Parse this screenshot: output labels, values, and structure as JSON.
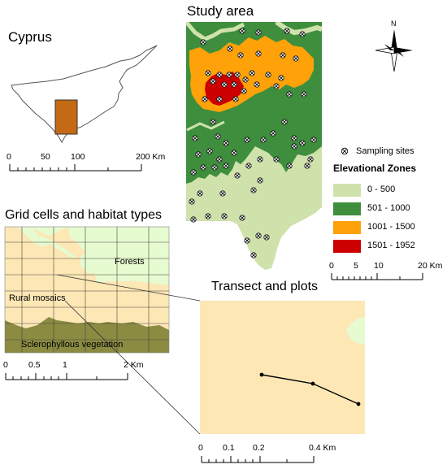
{
  "titles": {
    "cyprus": "Cyprus",
    "study_area": "Study area",
    "grid": "Grid cells and habitat types",
    "transect": "Transect and plots"
  },
  "north_arrow": {
    "label": "N",
    "icon": "north-arrow-icon"
  },
  "legend": {
    "sampling_sites": "Sampling sites",
    "elevation_title": "Elevational Zones",
    "zones": [
      {
        "label": "0 - 500",
        "color": "#cfe2ac"
      },
      {
        "label": "501 - 1000",
        "color": "#3e8e3e"
      },
      {
        "label": "1001 - 1500",
        "color": "#ffa20a"
      },
      {
        "label": "1501 - 1952",
        "color": "#cc0000"
      }
    ]
  },
  "habitats": {
    "forests": "Forests",
    "rural": "Rural mosaics",
    "sclero": "Sclerophyllous vegetation"
  },
  "scalebars": {
    "cyprus": [
      "0",
      "50",
      "100",
      "200 Km"
    ],
    "study": [
      "0",
      "5",
      "10",
      "20 Km"
    ],
    "grid": [
      "0",
      "0.5",
      "1",
      "2 Km"
    ],
    "transect": [
      "0",
      "0.1",
      "0.2",
      "0.4 Km"
    ]
  },
  "colors": {
    "forest_habitat": "#e6fbcf",
    "rural_habitat": "#fde7b5",
    "sclero_habitat": "#8b8b42",
    "study_box": "#c46a14"
  }
}
